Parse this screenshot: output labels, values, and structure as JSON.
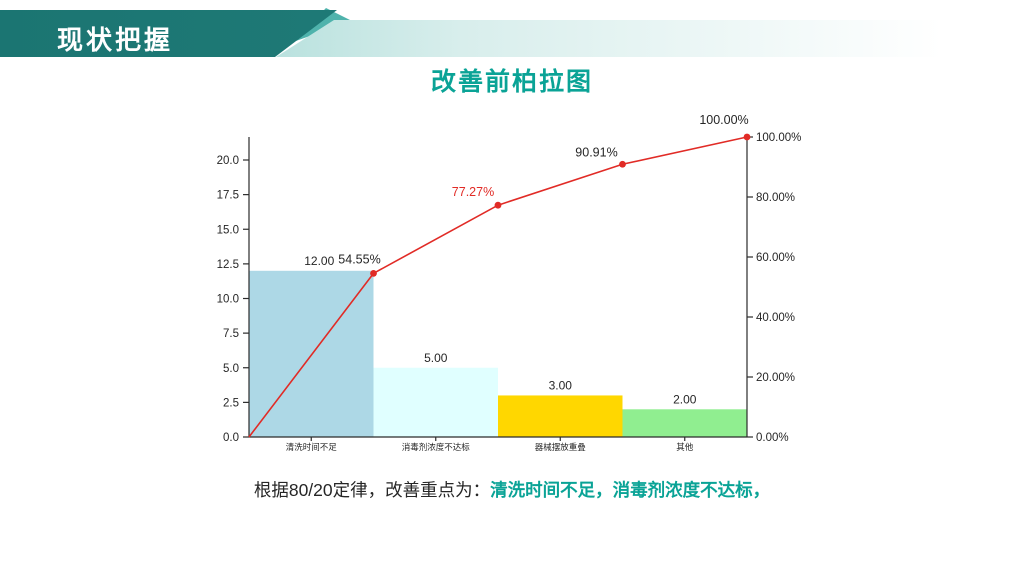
{
  "header": {
    "title": "现状把握"
  },
  "chart": {
    "title": "改善前柏拉图"
  },
  "chart_data": {
    "type": "bar",
    "subtype": "pareto-combo (bars + cumulative percentage line)",
    "title": "改善前柏拉图",
    "categories": [
      "清洗时间不足",
      "消毒剂浓度不达标",
      "器械摆放重叠",
      "其他"
    ],
    "series": [
      {
        "name": "frequency-bars",
        "values": [
          12,
          5,
          3,
          2
        ],
        "value_labels": [
          "12.00",
          "5.00",
          "3.00",
          "2.00"
        ],
        "bar_colors": [
          "#add8e6",
          "#e0ffff",
          "#ffd700",
          "#90ee90"
        ]
      },
      {
        "name": "cumulative-percent-line",
        "values": [
          54.55,
          77.27,
          90.91,
          100.0
        ],
        "point_labels": [
          "54.55%",
          "77.27%",
          "90.91%",
          "100.00%"
        ],
        "point_label_colors": [
          "#262626",
          "#e12b26",
          "#262626",
          "#262626"
        ],
        "line_color": "#e12b26",
        "starts_at_origin": true
      }
    ],
    "left_axis": {
      "ticks": [
        "0.0",
        "2.5",
        "5.0",
        "7.5",
        "10.0",
        "12.5",
        "15.0",
        "17.5",
        "20.0"
      ],
      "tick_values": [
        0,
        2.5,
        5,
        7.5,
        10,
        12.5,
        15,
        17.5,
        20
      ],
      "range": [
        0,
        21.7
      ]
    },
    "right_axis": {
      "ticks": [
        "0.00%",
        "20.00%",
        "40.00%",
        "60.00%",
        "80.00%",
        "100.00%"
      ],
      "tick_values": [
        0,
        20,
        40,
        60,
        80,
        100
      ],
      "range": [
        0,
        100
      ]
    },
    "grid": false,
    "legend": "none"
  },
  "footer": {
    "prefix": "根据80/20定律，改善重点为：",
    "highlight": "清洗时间不足，消毒剂浓度不达标，"
  },
  "colors": {
    "header_dark": "#1b7572",
    "header_dark2": "#23807c",
    "header_band_start": "#8ccfca",
    "header_triangle": "#4fb3ac",
    "teal_text": "#0aa396",
    "axis": "#2b2b2b",
    "line_red": "#e12b26"
  }
}
